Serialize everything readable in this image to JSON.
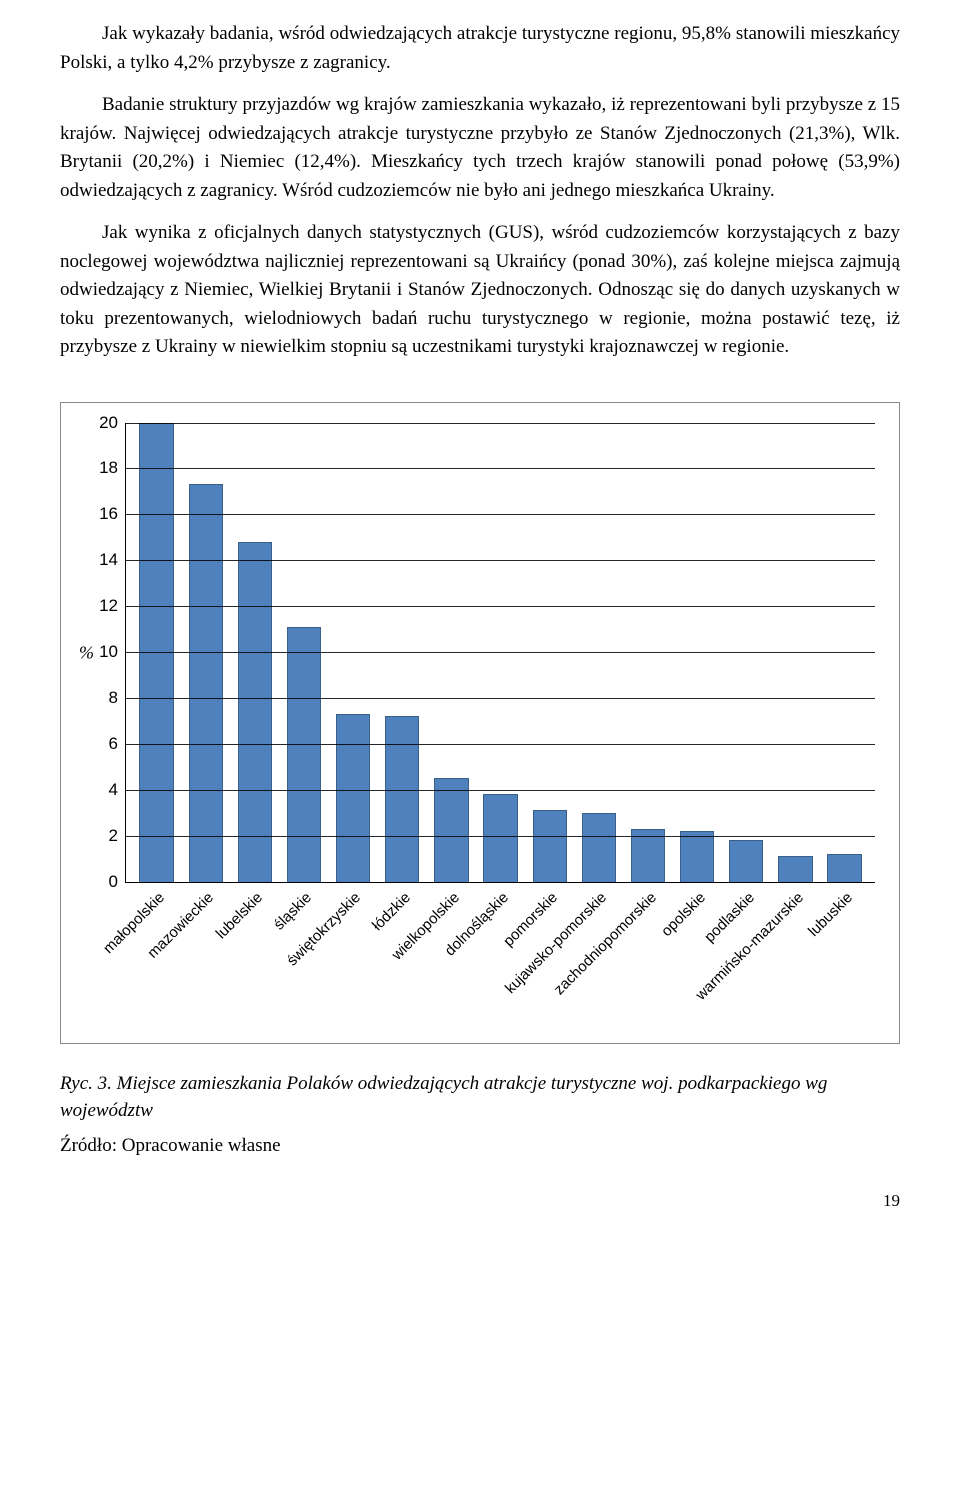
{
  "text": {
    "p1": "Jak wykazały badania, wśród odwiedzających atrakcje turystyczne regionu, 95,8% stanowili mieszkańcy Polski, a tylko 4,2% przybysze z zagranicy.",
    "p2": "Badanie struktury przyjazdów wg krajów zamieszkania wykazało, iż reprezentowani byli przybysze z 15 krajów. Najwięcej odwiedzających atrakcje turystyczne przybyło ze Stanów Zjednoczonych (21,3%), Wlk. Brytanii (20,2%) i Niemiec (12,4%). Mieszkańcy tych trzech krajów stanowili ponad połowę (53,9%) odwiedzających z zagranicy. Wśród cudzoziemców nie było ani jednego mieszkańca Ukrainy.",
    "p3": "Jak wynika z oficjalnych danych statystycznych (GUS), wśród cudzoziemców korzystających z bazy noclegowej województwa najliczniej reprezentowani są Ukraińcy (ponad 30%), zaś kolejne miejsca zajmują odwiedzający z Niemiec, Wielkiej Brytanii i Stanów Zjednoczonych. Odnosząc się do danych uzyskanych w toku prezentowanych, wielodniowych badań ruchu turystycznego w regionie, można postawić tezę, iż przybysze z Ukrainy w niewielkim stopniu są uczestnikami turystyki krajoznawczej w regionie.",
    "caption_prefix": "Ryc. 3.",
    "caption_rest": " Miejsce zamieszkania Polaków odwiedzających atrakcje turystyczne woj. podkarpackiego wg województw",
    "source": "Źródło: Opracowanie własne",
    "page_number": "19"
  },
  "chart": {
    "type": "bar",
    "y_axis_label": "%",
    "ylim_min": 0,
    "ylim_max": 20,
    "ytick_step": 2,
    "yticks": [
      0,
      2,
      4,
      6,
      8,
      10,
      12,
      14,
      16,
      18,
      20
    ],
    "bar_color": "#4f81bd",
    "bar_border_color": "#3a5f8a",
    "grid_color": "#000000",
    "background_color": "#ffffff",
    "bar_width_ratio": 0.7,
    "categories": [
      "małopolskie",
      "mazowieckie",
      "lubelskie",
      "śląskie",
      "świętokrzyskie",
      "łódzkie",
      "wielkopolskie",
      "dolnośląskie",
      "pomorskie",
      "kujawsko-pomorskie",
      "zachodniopomorskie",
      "opolskie",
      "podlaskie",
      "warmińsko-mazurskie",
      "lubuskie"
    ],
    "values": [
      20.0,
      17.3,
      14.8,
      11.1,
      7.3,
      7.2,
      4.5,
      3.8,
      3.1,
      3.0,
      2.3,
      2.2,
      1.8,
      1.1,
      1.2
    ]
  }
}
